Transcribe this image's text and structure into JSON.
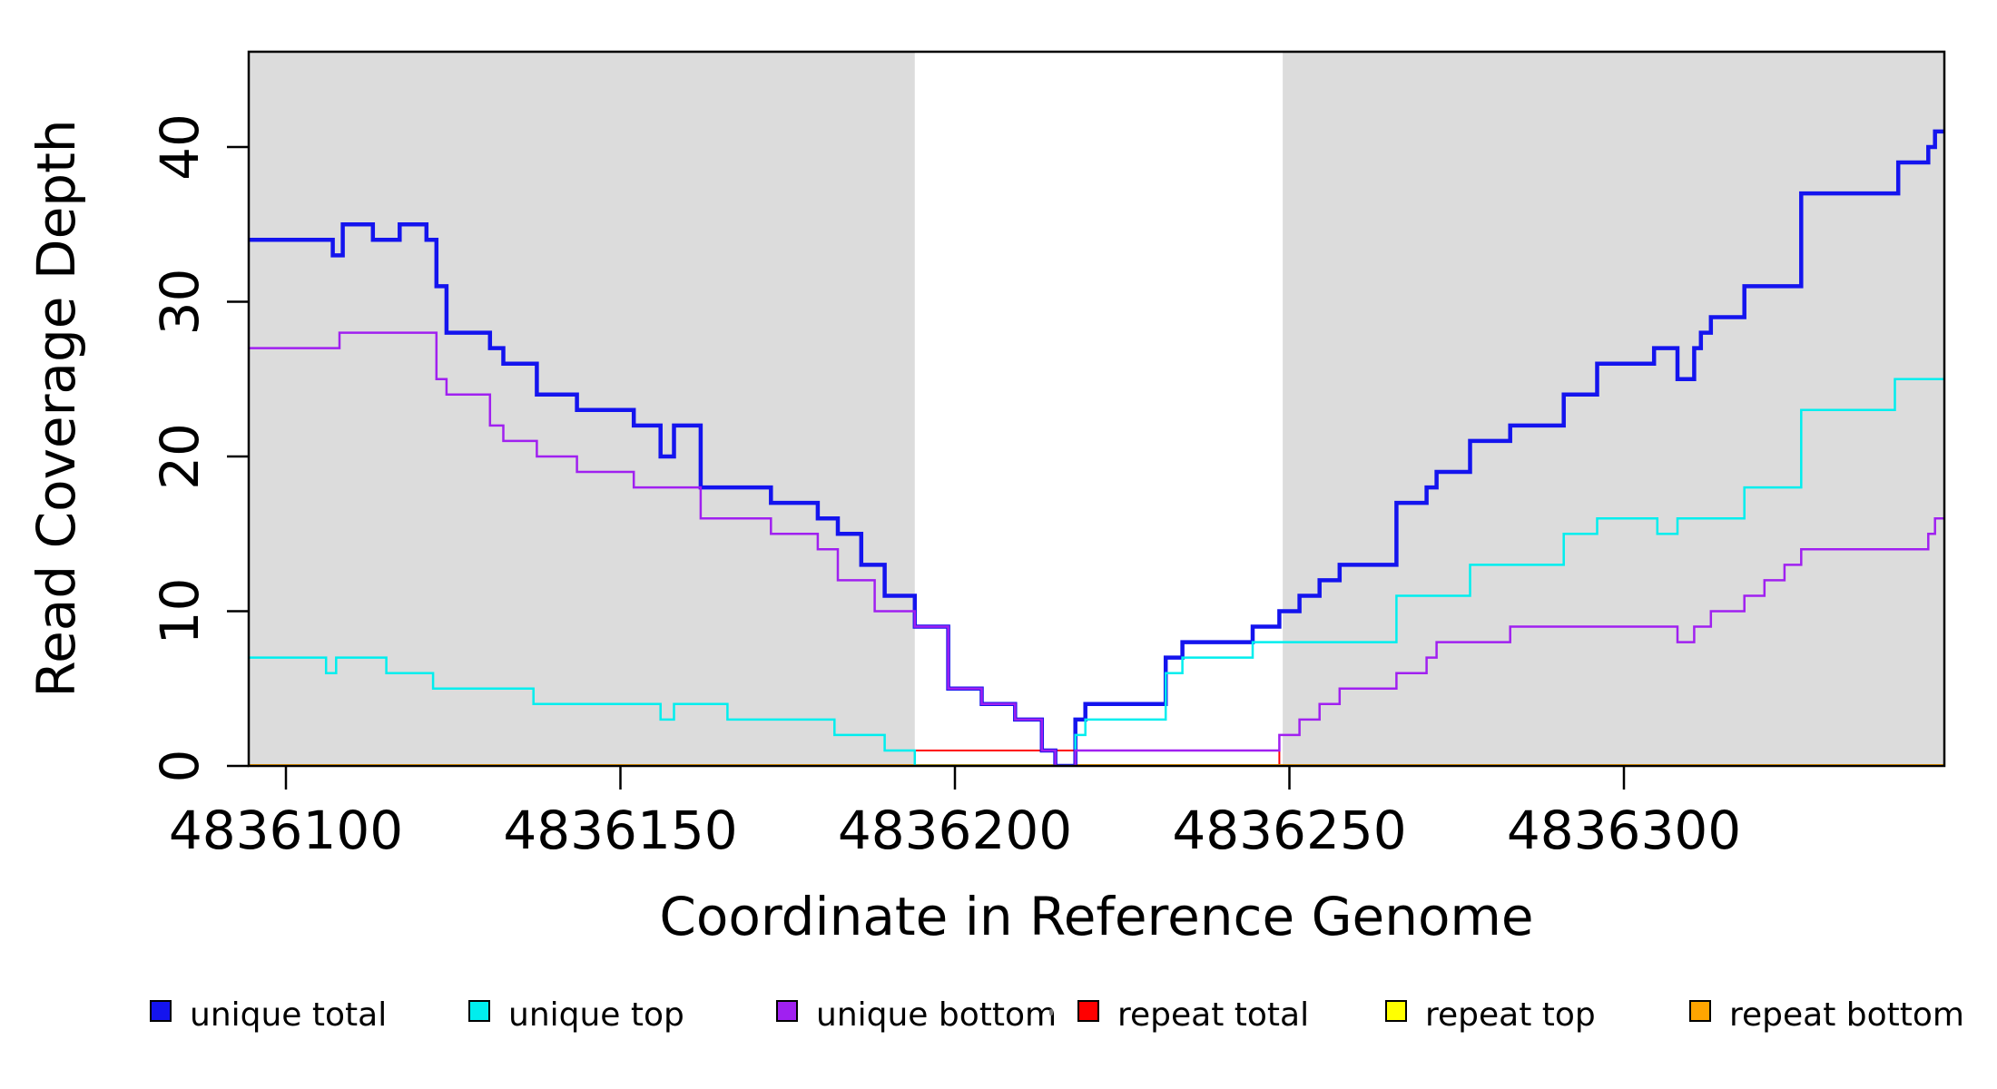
{
  "figure": {
    "x_axis_label": "Coordinate in Reference Genome",
    "y_axis_label": "Read Coverage Depth"
  },
  "legend": {
    "items": [
      {
        "label": "unique total",
        "color": "#1414ee"
      },
      {
        "label": "unique top",
        "color": "#00eeee"
      },
      {
        "label": "unique bottom",
        "color": "#a020f0"
      },
      {
        "label": "repeat total",
        "color": "#ff0000"
      },
      {
        "label": "repeat top",
        "color": "#ffff00"
      },
      {
        "label": "repeat bottom",
        "color": "#ffa500"
      }
    ]
  },
  "chart_data": {
    "type": "line",
    "style": "step",
    "title": "",
    "xlabel": "Coordinate in Reference Genome",
    "ylabel": "Read Coverage Depth",
    "xlim": [
      4836094,
      4836348
    ],
    "ylim": [
      0,
      46
    ],
    "x_ticks": [
      4836100,
      4836150,
      4836200,
      4836250,
      4836300
    ],
    "x_tick_labels": [
      "4836100",
      "4836150",
      "4836200",
      "4836250",
      "4836300"
    ],
    "y_ticks": [
      0,
      10,
      20,
      30,
      40
    ],
    "y_tick_labels": [
      "0",
      "10",
      "20",
      "30",
      "40"
    ],
    "grid": false,
    "background_color": "#ffffff",
    "shaded_regions": [
      {
        "from": 4836094,
        "to": 4836194,
        "color": "#dcdcdc"
      },
      {
        "from": 4836249,
        "to": 4836348,
        "color": "#dcdcdc"
      }
    ],
    "legend_position": "bottom",
    "series": [
      {
        "name": "unique total",
        "color": "#1414ee",
        "line_width": 4.5,
        "points": [
          [
            4836094,
            34
          ],
          [
            4836107,
            33
          ],
          [
            4836108.5,
            35
          ],
          [
            4836113,
            34
          ],
          [
            4836117,
            35
          ],
          [
            4836121,
            34
          ],
          [
            4836122.5,
            31
          ],
          [
            4836124,
            28
          ],
          [
            4836130.5,
            27
          ],
          [
            4836132.5,
            26
          ],
          [
            4836137.5,
            24
          ],
          [
            4836143.5,
            23
          ],
          [
            4836152,
            22
          ],
          [
            4836156,
            20
          ],
          [
            4836158,
            22
          ],
          [
            4836162,
            18
          ],
          [
            4836172.5,
            17
          ],
          [
            4836179.5,
            16
          ],
          [
            4836182.5,
            15
          ],
          [
            4836186,
            13
          ],
          [
            4836189.5,
            11
          ],
          [
            4836194,
            9
          ],
          [
            4836199,
            5
          ],
          [
            4836204,
            4
          ],
          [
            4836209,
            3
          ],
          [
            4836213,
            1
          ],
          [
            4836215,
            0
          ],
          [
            4836218,
            3
          ],
          [
            4836219.5,
            4
          ],
          [
            4836231.5,
            7
          ],
          [
            4836234,
            8
          ],
          [
            4836244.5,
            9
          ],
          [
            4836248.5,
            10
          ],
          [
            4836251.5,
            11
          ],
          [
            4836254.5,
            12
          ],
          [
            4836257.5,
            13
          ],
          [
            4836266,
            17
          ],
          [
            4836270.5,
            18
          ],
          [
            4836272,
            19
          ],
          [
            4836277,
            21
          ],
          [
            4836283,
            22
          ],
          [
            4836291,
            24
          ],
          [
            4836296,
            26
          ],
          [
            4836304.5,
            27
          ],
          [
            4836308,
            25
          ],
          [
            4836310.5,
            27
          ],
          [
            4836311.5,
            28
          ],
          [
            4836313,
            29
          ],
          [
            4836318,
            31
          ],
          [
            4836326.5,
            37
          ],
          [
            4836341,
            39
          ],
          [
            4836345.5,
            40
          ],
          [
            4836346.5,
            41
          ],
          [
            4836348,
            41
          ]
        ]
      },
      {
        "name": "unique top",
        "color": "#00eeee",
        "line_width": 2.5,
        "points": [
          [
            4836094,
            7
          ],
          [
            4836106,
            6
          ],
          [
            4836107.5,
            7
          ],
          [
            4836115,
            6
          ],
          [
            4836122,
            5
          ],
          [
            4836137,
            4
          ],
          [
            4836156,
            3
          ],
          [
            4836158,
            4
          ],
          [
            4836166,
            3
          ],
          [
            4836182,
            2
          ],
          [
            4836189.5,
            1
          ],
          [
            4836194,
            0
          ],
          [
            4836218,
            2
          ],
          [
            4836219.5,
            3
          ],
          [
            4836231.5,
            6
          ],
          [
            4836234,
            7
          ],
          [
            4836244.5,
            8
          ],
          [
            4836266,
            11
          ],
          [
            4836277,
            13
          ],
          [
            4836291,
            15
          ],
          [
            4836296,
            16
          ],
          [
            4836305,
            15
          ],
          [
            4836308,
            16
          ],
          [
            4836318,
            18
          ],
          [
            4836326.5,
            23
          ],
          [
            4836340.5,
            25
          ],
          [
            4836348,
            25
          ]
        ]
      },
      {
        "name": "unique bottom",
        "color": "#a020f0",
        "line_width": 2.5,
        "points": [
          [
            4836094,
            27
          ],
          [
            4836108,
            28
          ],
          [
            4836122.5,
            25
          ],
          [
            4836124,
            24
          ],
          [
            4836130.5,
            22
          ],
          [
            4836132.5,
            21
          ],
          [
            4836137.5,
            20
          ],
          [
            4836143.5,
            19
          ],
          [
            4836152,
            18
          ],
          [
            4836162,
            16
          ],
          [
            4836172.5,
            15
          ],
          [
            4836179.5,
            14
          ],
          [
            4836182.5,
            12
          ],
          [
            4836188,
            10
          ],
          [
            4836194,
            9
          ],
          [
            4836199,
            5
          ],
          [
            4836204,
            4
          ],
          [
            4836209,
            3
          ],
          [
            4836213,
            1
          ],
          [
            4836215,
            0
          ],
          [
            4836218,
            1
          ],
          [
            4836248.5,
            2
          ],
          [
            4836251.5,
            3
          ],
          [
            4836254.5,
            4
          ],
          [
            4836257.5,
            5
          ],
          [
            4836266,
            6
          ],
          [
            4836270.5,
            7
          ],
          [
            4836272,
            8
          ],
          [
            4836283,
            9
          ],
          [
            4836308,
            8
          ],
          [
            4836310.5,
            9
          ],
          [
            4836313,
            10
          ],
          [
            4836318,
            11
          ],
          [
            4836321,
            12
          ],
          [
            4836324,
            13
          ],
          [
            4836326.5,
            14
          ],
          [
            4836345.5,
            15
          ],
          [
            4836346.5,
            16
          ],
          [
            4836348,
            16
          ]
        ]
      },
      {
        "name": "repeat total",
        "color": "#ff0000",
        "line_width": 2,
        "points": [
          [
            4836094,
            0
          ],
          [
            4836194,
            1
          ],
          [
            4836248.5,
            0
          ],
          [
            4836348,
            0
          ]
        ]
      },
      {
        "name": "repeat top",
        "color": "#ffff00",
        "line_width": 2,
        "points": [
          [
            4836094,
            0
          ],
          [
            4836348,
            0
          ]
        ]
      },
      {
        "name": "repeat bottom",
        "color": "#ffa500",
        "line_width": 4,
        "points": [
          [
            4836094,
            0
          ],
          [
            4836348,
            0
          ]
        ]
      }
    ]
  }
}
